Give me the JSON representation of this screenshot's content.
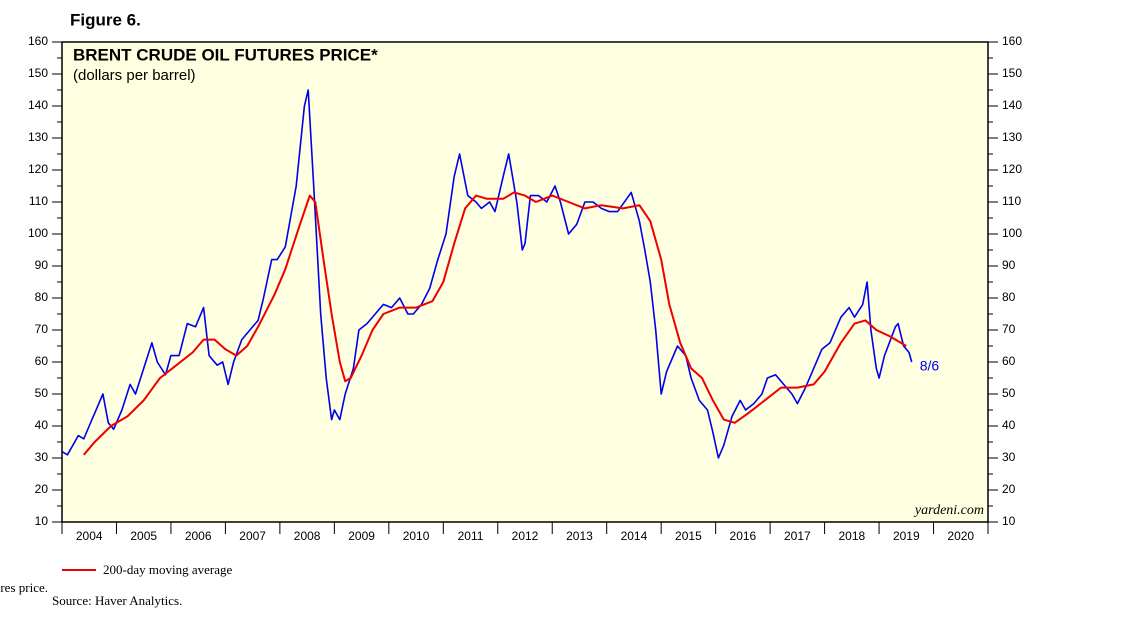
{
  "figure_label": "Figure 6.",
  "chart_data": {
    "type": "line",
    "title": "BRENT CRUDE OIL FUTURES PRICE*",
    "subtitle": "(dollars per barrel)",
    "xlim": [
      2004,
      2021
    ],
    "xticks": [
      2004,
      2005,
      2006,
      2007,
      2008,
      2009,
      2010,
      2011,
      2012,
      2013,
      2014,
      2015,
      2016,
      2017,
      2018,
      2019,
      2020
    ],
    "ylim": [
      10,
      160
    ],
    "yticks": [
      10,
      20,
      30,
      40,
      50,
      60,
      70,
      80,
      90,
      100,
      110,
      120,
      130,
      140,
      150,
      160
    ],
    "background": "#fefee0",
    "series": [
      {
        "color": "#0000ee",
        "x": [
          2004.0,
          2004.1,
          2004.2,
          2004.3,
          2004.4,
          2004.5,
          2004.6,
          2004.75,
          2004.85,
          2004.95,
          2005.1,
          2005.25,
          2005.35,
          2005.5,
          2005.65,
          2005.75,
          2005.9,
          2006.0,
          2006.15,
          2006.3,
          2006.45,
          2006.6,
          2006.7,
          2006.85,
          2006.95,
          2007.05,
          2007.15,
          2007.3,
          2007.45,
          2007.6,
          2007.7,
          2007.85,
          2007.95,
          2008.1,
          2008.3,
          2008.45,
          2008.52,
          2008.62,
          2008.75,
          2008.85,
          2008.95,
          2009.0,
          2009.1,
          2009.2,
          2009.35,
          2009.45,
          2009.6,
          2009.75,
          2009.9,
          2010.05,
          2010.2,
          2010.35,
          2010.45,
          2010.6,
          2010.75,
          2010.9,
          2011.05,
          2011.2,
          2011.3,
          2011.45,
          2011.6,
          2011.7,
          2011.85,
          2011.95,
          2012.1,
          2012.2,
          2012.35,
          2012.45,
          2012.5,
          2012.6,
          2012.75,
          2012.9,
          2013.05,
          2013.15,
          2013.3,
          2013.45,
          2013.6,
          2013.75,
          2013.9,
          2014.05,
          2014.2,
          2014.45,
          2014.6,
          2014.7,
          2014.8,
          2014.9,
          2015.0,
          2015.1,
          2015.3,
          2015.45,
          2015.55,
          2015.7,
          2015.85,
          2015.95,
          2016.05,
          2016.15,
          2016.3,
          2016.45,
          2016.55,
          2016.7,
          2016.85,
          2016.95,
          2017.1,
          2017.25,
          2017.4,
          2017.5,
          2017.65,
          2017.8,
          2017.95,
          2018.1,
          2018.3,
          2018.45,
          2018.55,
          2018.7,
          2018.78,
          2018.85,
          2018.95,
          2019.0,
          2019.1,
          2019.3,
          2019.35,
          2019.45,
          2019.55,
          2019.6
        ],
        "values": [
          32,
          31,
          34,
          37,
          36,
          40,
          44,
          50,
          41,
          39,
          45,
          53,
          50,
          58,
          66,
          60,
          56,
          62,
          62,
          72,
          71,
          77,
          62,
          59,
          60,
          53,
          60,
          67,
          70,
          73,
          80,
          92,
          92,
          96,
          115,
          140,
          145,
          115,
          75,
          55,
          42,
          45,
          42,
          50,
          58,
          70,
          72,
          75,
          78,
          77,
          80,
          75,
          75,
          78,
          83,
          92,
          100,
          118,
          125,
          112,
          110,
          108,
          110,
          107,
          118,
          125,
          110,
          95,
          97,
          112,
          112,
          110,
          115,
          110,
          100,
          103,
          110,
          110,
          108,
          107,
          107,
          113,
          104,
          95,
          85,
          70,
          50,
          57,
          65,
          62,
          55,
          48,
          45,
          38,
          30,
          34,
          43,
          48,
          45,
          47,
          50,
          55,
          56,
          53,
          50,
          47,
          52,
          58,
          64,
          66,
          74,
          77,
          74,
          78,
          85,
          70,
          58,
          55,
          62,
          71,
          72,
          65,
          63,
          60
        ]
      },
      {
        "name": "200-day moving average",
        "color": "#ee0000",
        "x": [
          2004.4,
          2004.6,
          2004.9,
          2005.2,
          2005.5,
          2005.8,
          2006.1,
          2006.4,
          2006.6,
          2006.8,
          2007.0,
          2007.2,
          2007.4,
          2007.6,
          2007.9,
          2008.1,
          2008.35,
          2008.55,
          2008.65,
          2008.8,
          2008.95,
          2009.1,
          2009.2,
          2009.3,
          2009.5,
          2009.7,
          2009.9,
          2010.2,
          2010.5,
          2010.8,
          2011.0,
          2011.2,
          2011.4,
          2011.6,
          2011.8,
          2012.1,
          2012.3,
          2012.5,
          2012.7,
          2013.0,
          2013.3,
          2013.6,
          2013.9,
          2014.3,
          2014.6,
          2014.8,
          2015.0,
          2015.15,
          2015.35,
          2015.55,
          2015.75,
          2015.95,
          2016.15,
          2016.35,
          2016.6,
          2016.9,
          2017.2,
          2017.5,
          2017.8,
          2018.0,
          2018.3,
          2018.55,
          2018.75,
          2018.95,
          2019.2,
          2019.5
        ],
        "values": [
          31,
          35,
          40,
          43,
          48,
          55,
          59,
          63,
          67,
          67,
          64,
          62,
          65,
          71,
          81,
          89,
          102,
          112,
          110,
          92,
          75,
          60,
          54,
          55,
          62,
          70,
          75,
          77,
          77,
          79,
          85,
          97,
          108,
          112,
          111,
          111,
          113,
          112,
          110,
          112,
          110,
          108,
          109,
          108,
          109,
          104,
          92,
          78,
          66,
          58,
          55,
          48,
          42,
          41,
          44,
          48,
          52,
          52,
          53,
          57,
          66,
          72,
          73,
          70,
          68,
          65
        ]
      }
    ],
    "annotations": [
      "8/6",
      "yardeni.com"
    ],
    "footnotes": [
      "* Nearby futures price.",
      "Source: Haver Analytics."
    ]
  }
}
